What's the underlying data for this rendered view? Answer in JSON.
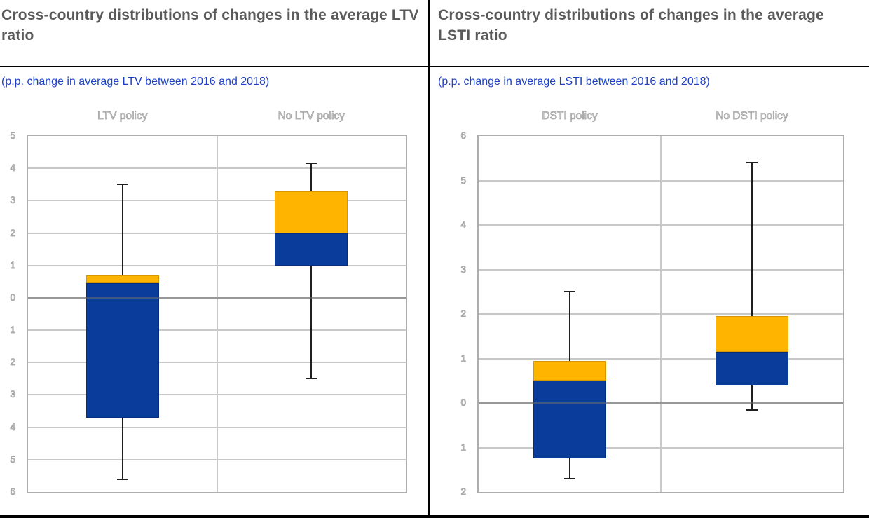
{
  "colors": {
    "box_upper": "#FFB400",
    "box_lower": "#0A3C9B",
    "gridline": "#C9C9C9",
    "plot_border": "#ADADAD",
    "whisker": "#1F1F1F",
    "zero_line": "#6E6E6E",
    "title": "#5A5A5A",
    "subtitle": "#1E41C6",
    "rule": "#000000"
  },
  "chart_data": [
    {
      "type": "boxplot",
      "title": "Cross-country distributions of changes in the average LTV ratio",
      "subtitle": "(p.p. change in average LTV between 2016 and 2018)",
      "categories": [
        "LTV policy",
        "No LTV policy"
      ],
      "ylim": [
        -6,
        5
      ],
      "ticks": [
        5,
        4,
        3,
        2,
        1,
        0,
        -1,
        -2,
        -3,
        -4,
        -5,
        -6
      ],
      "tick_labels": [
        "5",
        "4",
        "3",
        "2",
        "1",
        "0",
        "1",
        "2",
        "3",
        "4",
        "5",
        "6"
      ],
      "grid": true,
      "legend": "none",
      "series": [
        {
          "name": "LTV policy",
          "whisker_low": -5.6,
          "q1": -3.7,
          "median": 0.45,
          "q3": 0.7,
          "whisker_high": 3.5
        },
        {
          "name": "No LTV policy",
          "whisker_low": -2.5,
          "q1": 1.0,
          "median": 2.0,
          "q3": 3.3,
          "whisker_high": 4.15
        }
      ]
    },
    {
      "type": "boxplot",
      "title": "Cross-country distributions of changes in the average LSTI ratio",
      "subtitle": "(p.p. change in average LSTI between 2016 and 2018)",
      "categories": [
        "DSTI policy",
        "No DSTI policy"
      ],
      "ylim": [
        -2,
        6
      ],
      "ticks": [
        6,
        5,
        4,
        3,
        2,
        1,
        0,
        -1,
        -2
      ],
      "tick_labels": [
        "6",
        "5",
        "4",
        "3",
        "2",
        "1",
        "0",
        "1",
        "2"
      ],
      "grid": true,
      "legend": "none",
      "series": [
        {
          "name": "DSTI policy",
          "whisker_low": -1.7,
          "q1": -1.25,
          "median": 0.5,
          "q3": 0.95,
          "whisker_high": 2.5
        },
        {
          "name": "No DSTI policy",
          "whisker_low": -0.15,
          "q1": 0.4,
          "median": 1.15,
          "q3": 1.95,
          "whisker_high": 5.4
        }
      ]
    }
  ]
}
